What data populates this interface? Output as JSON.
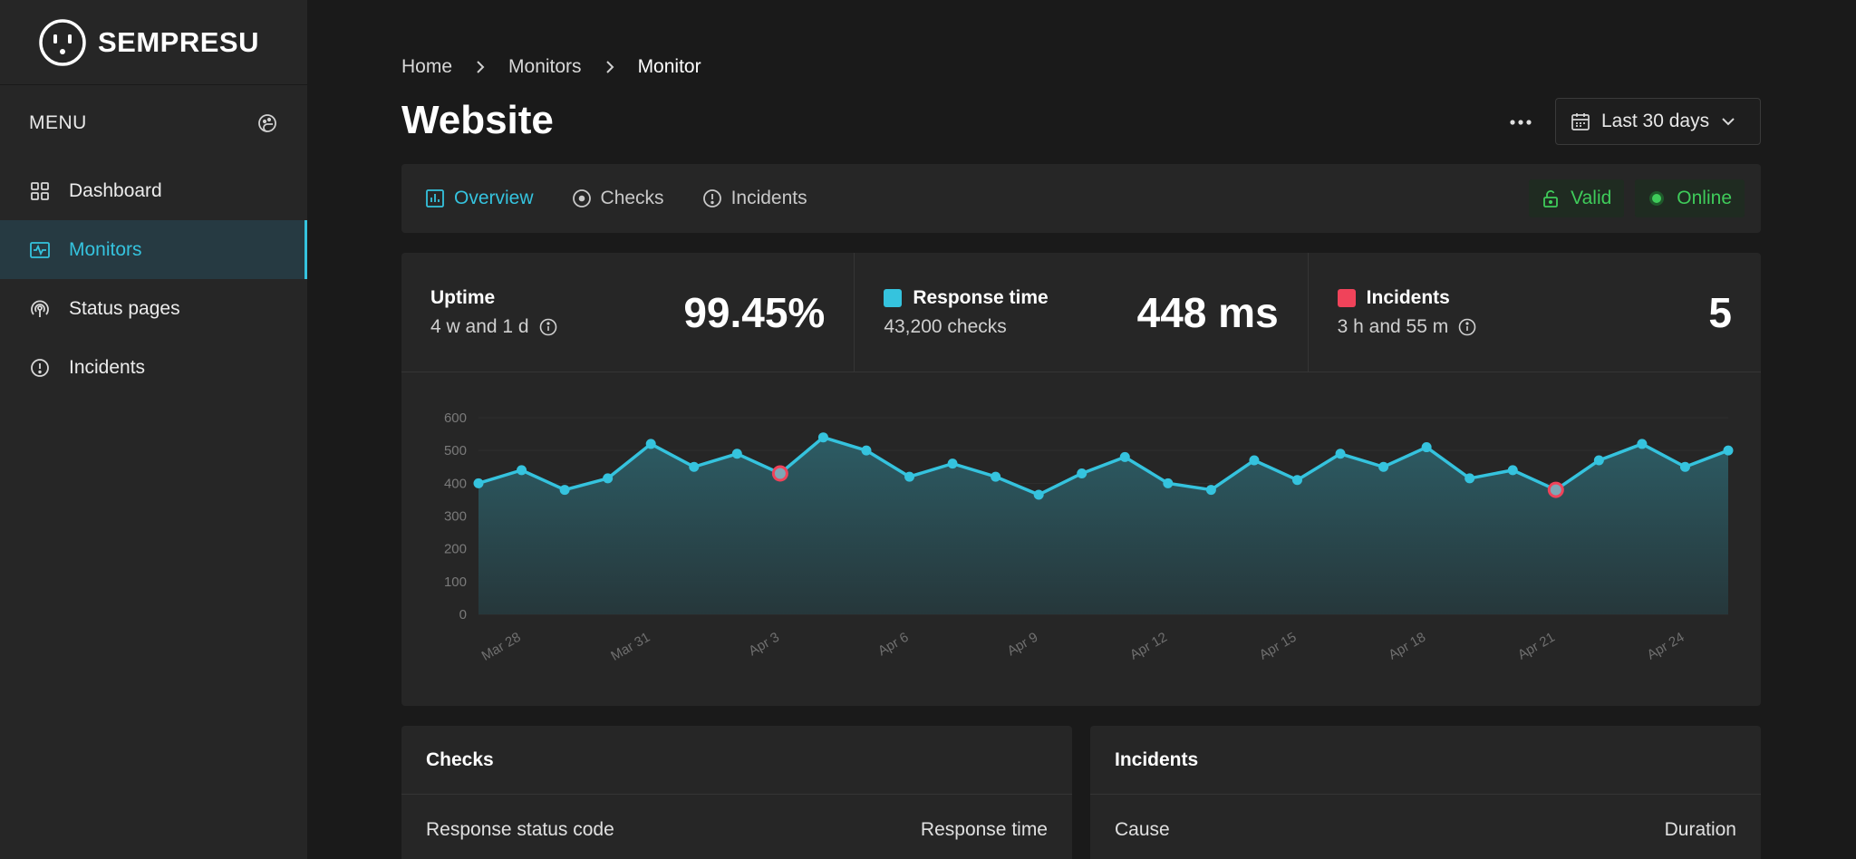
{
  "app": {
    "logo_text": "SEMPRESU"
  },
  "sidebar": {
    "menu_label": "MENU",
    "items": [
      {
        "label": "Dashboard",
        "icon": "grid-icon",
        "active": false
      },
      {
        "label": "Monitors",
        "icon": "monitor-pulse-icon",
        "active": true
      },
      {
        "label": "Status pages",
        "icon": "broadcast-icon",
        "active": false
      },
      {
        "label": "Incidents",
        "icon": "alert-circle-icon",
        "active": false
      }
    ]
  },
  "breadcrumb": [
    "Home",
    "Monitors",
    "Monitor"
  ],
  "page": {
    "title": "Website",
    "date_range": "Last 30 days"
  },
  "tabs": [
    {
      "label": "Overview",
      "icon": "bar-chart-icon",
      "active": true
    },
    {
      "label": "Checks",
      "icon": "target-icon",
      "active": false
    },
    {
      "label": "Incidents",
      "icon": "alert-circle-icon",
      "active": false
    }
  ],
  "badges": {
    "ssl": "Valid",
    "status": "Online"
  },
  "stats": {
    "uptime": {
      "label": "Uptime",
      "sub": "4 w and 1 d",
      "value": "99.45%"
    },
    "response": {
      "label": "Response time",
      "sub": "43,200 checks",
      "value": "448 ms",
      "color": "#35c3de"
    },
    "incidents": {
      "label": "Incidents",
      "sub": "3 h and 55 m",
      "value": "5",
      "color": "#f0435a"
    }
  },
  "chart_data": {
    "type": "area",
    "x": [
      "Mar 27",
      "Mar 28",
      "Mar 29",
      "Mar 30",
      "Mar 31",
      "Apr 1",
      "Apr 2",
      "Apr 3",
      "Apr 4",
      "Apr 5",
      "Apr 6",
      "Apr 7",
      "Apr 8",
      "Apr 9",
      "Apr 10",
      "Apr 11",
      "Apr 12",
      "Apr 13",
      "Apr 14",
      "Apr 15",
      "Apr 16",
      "Apr 17",
      "Apr 18",
      "Apr 19",
      "Apr 20",
      "Apr 21",
      "Apr 22",
      "Apr 23",
      "Apr 24",
      "Apr 25"
    ],
    "series": [
      {
        "values": [
          400,
          440,
          380,
          415,
          520,
          450,
          490,
          430,
          540,
          500,
          420,
          460,
          420,
          365,
          430,
          480,
          400,
          380,
          470,
          410,
          490,
          450,
          510,
          415,
          440,
          380,
          470,
          520,
          450,
          500
        ]
      }
    ],
    "incident_points": [
      "Apr 3",
      "Apr 21"
    ],
    "xticks": [
      "Mar 28",
      "Mar 31",
      "Apr 3",
      "Apr 6",
      "Apr 9",
      "Apr 12",
      "Apr 15",
      "Apr 18",
      "Apr 21",
      "Apr 24"
    ],
    "ylim": [
      0,
      600
    ],
    "yticks": [
      0,
      100,
      200,
      300,
      400,
      500,
      600
    ],
    "line_color": "#35c3de",
    "incident_color": "#f0435a"
  },
  "checks_card": {
    "title": "Checks",
    "col1": "Response status code",
    "col2": "Response time"
  },
  "incidents_card": {
    "title": "Incidents",
    "col1": "Cause",
    "col2": "Duration"
  }
}
